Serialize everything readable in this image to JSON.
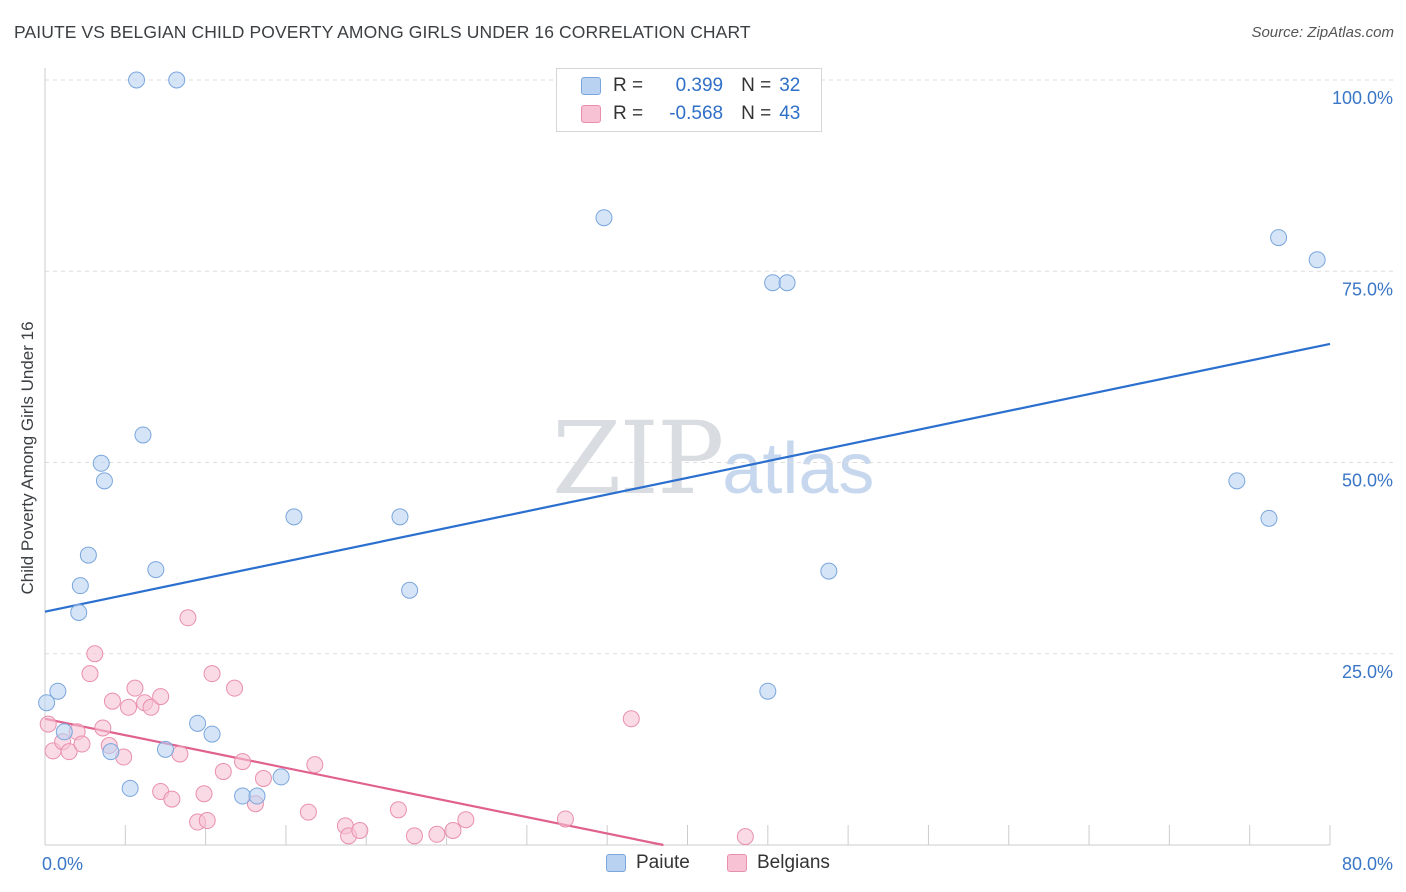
{
  "header": {
    "title": "PAIUTE VS BELGIAN CHILD POVERTY AMONG GIRLS UNDER 16 CORRELATION CHART",
    "source": "Source: ZipAtlas.com"
  },
  "watermark": {
    "zip": "ZIP",
    "atlas": "atlas"
  },
  "legend": {
    "r_label": "R =",
    "n_label": "N =",
    "paiute": {
      "r": "0.399",
      "n": "32"
    },
    "belgians": {
      "r": "-0.568",
      "n": "43"
    }
  },
  "colors": {
    "paiute_fill": "#b9d2f2",
    "paiute_stroke": "#7aa6dc",
    "paiute_line": "#2b6fcf",
    "belgians_fill": "#f7c3d4",
    "belgians_stroke": "#e98fae",
    "belgians_line": "#e0608e",
    "tick_text": "#3a76c6"
  },
  "chart_data": {
    "type": "scatter",
    "title": "PAIUTE VS BELGIAN CHILD POVERTY AMONG GIRLS UNDER 16 CORRELATION CHART",
    "xlabel": "",
    "ylabel": "Child Poverty Among Girls Under 16",
    "xlim": [
      0,
      80
    ],
    "ylim": [
      0,
      100
    ],
    "x_tick_labels": [
      {
        "value": 0,
        "label": "0.0%"
      },
      {
        "value": 80,
        "label": "80.0%"
      }
    ],
    "y_tick_labels": [
      {
        "value": 100,
        "label": "100.0%"
      },
      {
        "value": 75,
        "label": "75.0%"
      },
      {
        "value": 50,
        "label": "50.0%"
      },
      {
        "value": 25,
        "label": "25.0%"
      }
    ],
    "grid": true,
    "legend_position": "top-center",
    "series": [
      {
        "name": "Paiute",
        "r": 0.399,
        "n": 32,
        "trend": {
          "x": [
            0,
            80
          ],
          "y": [
            30.5,
            65.5
          ]
        },
        "points": [
          [
            0.1,
            18.6
          ],
          [
            0.8,
            20.1
          ],
          [
            1.2,
            14.8
          ],
          [
            2.1,
            30.4
          ],
          [
            2.2,
            33.9
          ],
          [
            2.7,
            37.9
          ],
          [
            3.5,
            49.9
          ],
          [
            3.7,
            47.6
          ],
          [
            4.1,
            12.2
          ],
          [
            5.3,
            7.4
          ],
          [
            5.7,
            100
          ],
          [
            6.1,
            53.6
          ],
          [
            6.9,
            36.0
          ],
          [
            7.5,
            12.5
          ],
          [
            8.2,
            100
          ],
          [
            9.5,
            15.9
          ],
          [
            10.4,
            14.5
          ],
          [
            12.3,
            6.4
          ],
          [
            13.2,
            6.4
          ],
          [
            14.7,
            8.9
          ],
          [
            15.5,
            42.9
          ],
          [
            22.1,
            42.9
          ],
          [
            22.7,
            33.3
          ],
          [
            34.8,
            82.0
          ],
          [
            45.0,
            20.1
          ],
          [
            45.3,
            73.5
          ],
          [
            46.2,
            73.5
          ],
          [
            48.8,
            35.8
          ],
          [
            74.2,
            47.6
          ],
          [
            76.2,
            42.7
          ],
          [
            76.8,
            79.4
          ],
          [
            79.2,
            76.5
          ]
        ]
      },
      {
        "name": "Belgians",
        "r": -0.568,
        "n": 43,
        "trend": {
          "x": [
            0,
            38.5
          ],
          "y": [
            16.5,
            0
          ]
        },
        "points": [
          [
            0.2,
            15.8
          ],
          [
            0.5,
            12.3
          ],
          [
            1.1,
            13.5
          ],
          [
            1.5,
            12.2
          ],
          [
            2.0,
            14.8
          ],
          [
            2.3,
            13.2
          ],
          [
            2.8,
            22.4
          ],
          [
            3.1,
            25.0
          ],
          [
            3.6,
            15.3
          ],
          [
            4.0,
            13.0
          ],
          [
            4.2,
            18.8
          ],
          [
            4.9,
            11.5
          ],
          [
            5.2,
            18.0
          ],
          [
            5.6,
            20.5
          ],
          [
            6.2,
            18.6
          ],
          [
            6.6,
            18.0
          ],
          [
            7.2,
            19.4
          ],
          [
            7.2,
            7.0
          ],
          [
            7.9,
            6.0
          ],
          [
            8.4,
            11.9
          ],
          [
            8.9,
            29.7
          ],
          [
            9.5,
            3.0
          ],
          [
            9.9,
            6.7
          ],
          [
            10.1,
            3.2
          ],
          [
            10.4,
            22.4
          ],
          [
            11.1,
            9.6
          ],
          [
            11.8,
            20.5
          ],
          [
            12.3,
            10.9
          ],
          [
            13.1,
            5.4
          ],
          [
            13.6,
            8.7
          ],
          [
            16.4,
            4.3
          ],
          [
            16.8,
            10.5
          ],
          [
            18.7,
            2.5
          ],
          [
            18.9,
            1.2
          ],
          [
            19.6,
            1.9
          ],
          [
            22.0,
            4.6
          ],
          [
            23.0,
            1.2
          ],
          [
            24.4,
            1.4
          ],
          [
            25.4,
            1.9
          ],
          [
            26.2,
            3.3
          ],
          [
            32.4,
            3.4
          ],
          [
            36.5,
            16.5
          ],
          [
            43.6,
            1.1
          ]
        ]
      }
    ]
  },
  "bottom_legend": {
    "paiute": "Paiute",
    "belgians": "Belgians"
  }
}
